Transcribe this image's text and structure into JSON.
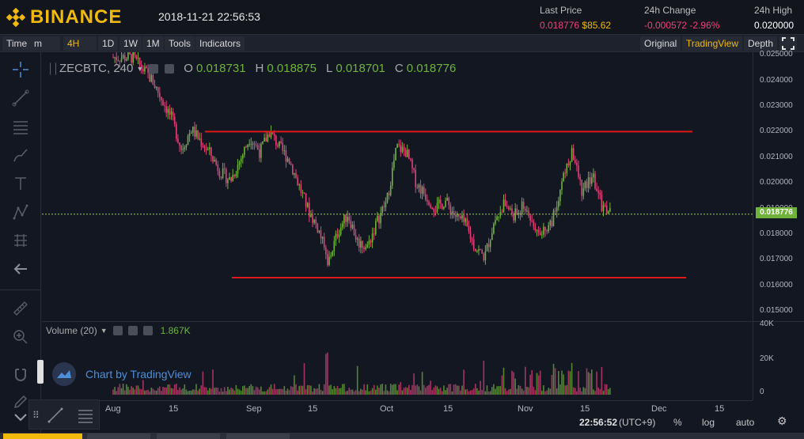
{
  "header": {
    "brand": "BINANCE",
    "datetime": "2018-11-21 22:56:53",
    "last_price_label": "Last Price",
    "last_price": "0.018776",
    "last_price_usd": "$85.62",
    "change_label": "24h Change",
    "change_value": "-0.000572",
    "change_pct": "-2.96%",
    "high_label": "24h High",
    "high_value": "0.020000"
  },
  "toolbar": {
    "time_label": "Time",
    "minute_label": "m",
    "interval": "4H",
    "d1": "1D",
    "w1": "1W",
    "m1": "1M",
    "tools": "Tools",
    "indicators": "Indicators",
    "original": "Original",
    "tradingview": "TradingView",
    "depth": "Depth"
  },
  "legend": {
    "symbol": "ZECBTC, 240",
    "o_label": "O",
    "o_value": "0.018731",
    "h_label": "H",
    "h_value": "0.018875",
    "l_label": "L",
    "l_value": "0.018701",
    "c_label": "C",
    "c_value": "0.018776"
  },
  "volume": {
    "label": "Volume (20)",
    "value": "1.867K"
  },
  "watermark": "Chart by TradingView",
  "price_tag": "0.018776",
  "bottom": {
    "time": "22:56:52",
    "tz": "(UTC+9)",
    "pct": "%",
    "log": "log",
    "auto": "auto"
  },
  "colors": {
    "up": "#6fb33b",
    "down": "#e0427a",
    "brand": "#f0b90b",
    "trendline": "#e01818"
  },
  "chart_data": {
    "type": "candlestick",
    "symbol": "ZECBTC",
    "interval": "240",
    "y_ticks": [
      "0.025000",
      "0.024000",
      "0.023000",
      "0.022000",
      "0.021000",
      "0.020000",
      "0.019000",
      "0.018000",
      "0.017000",
      "0.016000",
      "0.015000"
    ],
    "volume_ticks": [
      "40K",
      "20K",
      "0"
    ],
    "x_ticks": [
      "Aug",
      "15",
      "Sep",
      "15",
      "Oct",
      "15",
      "Nov",
      "15",
      "Dec",
      "15"
    ],
    "ylim": [
      0.0146,
      0.0251
    ],
    "resistance": 0.022,
    "support": 0.0163,
    "current_price_line": 0.018776,
    "approx_close_path": [
      [
        0,
        0.0249
      ],
      [
        2,
        0.0249
      ],
      [
        4,
        0.024
      ],
      [
        6,
        0.0225
      ],
      [
        7,
        0.0213
      ],
      [
        8,
        0.0221
      ],
      [
        9,
        0.0216
      ],
      [
        10,
        0.0211
      ],
      [
        11,
        0.0204
      ],
      [
        12,
        0.0201
      ],
      [
        13,
        0.0209
      ],
      [
        14,
        0.0218
      ],
      [
        15,
        0.0212
      ],
      [
        16,
        0.022
      ],
      [
        17,
        0.0214
      ],
      [
        18,
        0.0209
      ],
      [
        19,
        0.0199
      ],
      [
        20,
        0.0189
      ],
      [
        21,
        0.0182
      ],
      [
        22,
        0.0169
      ],
      [
        23,
        0.0181
      ],
      [
        24,
        0.0188
      ],
      [
        25,
        0.0177
      ],
      [
        26,
        0.0175
      ],
      [
        27,
        0.0185
      ],
      [
        28,
        0.0193
      ],
      [
        29,
        0.0214
      ],
      [
        30,
        0.0212
      ],
      [
        31,
        0.02
      ],
      [
        32,
        0.0195
      ],
      [
        33,
        0.019
      ],
      [
        34,
        0.0193
      ],
      [
        35,
        0.0187
      ],
      [
        36,
        0.0184
      ],
      [
        37,
        0.0175
      ],
      [
        38,
        0.0171
      ],
      [
        39,
        0.0185
      ],
      [
        40,
        0.0192
      ],
      [
        41,
        0.0187
      ],
      [
        42,
        0.0191
      ],
      [
        43,
        0.0184
      ],
      [
        44,
        0.0181
      ],
      [
        45,
        0.0186
      ],
      [
        46,
        0.0202
      ],
      [
        47,
        0.0212
      ],
      [
        48,
        0.0196
      ],
      [
        49,
        0.0203
      ],
      [
        50,
        0.0191
      ],
      [
        51,
        0.0188
      ]
    ]
  }
}
